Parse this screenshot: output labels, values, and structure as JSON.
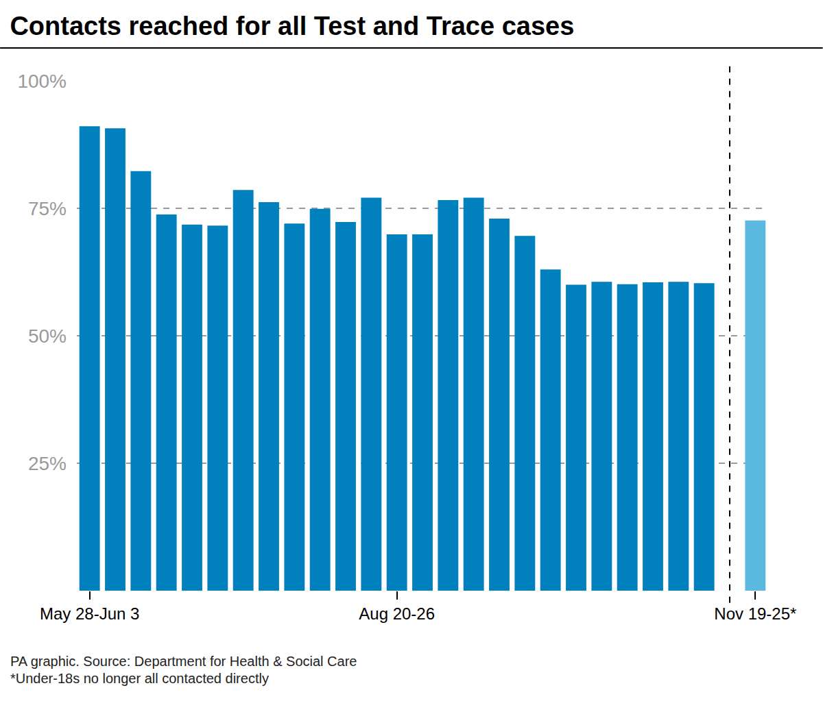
{
  "chart_data": {
    "type": "bar",
    "title": "Contacts reached for all Test and Trace cases",
    "categories": [
      "May 28-Jun 3",
      null,
      null,
      null,
      null,
      null,
      null,
      null,
      null,
      null,
      null,
      null,
      "Aug 20-26",
      null,
      null,
      null,
      null,
      null,
      null,
      null,
      null,
      null,
      null,
      null,
      null,
      null,
      "Nov 19-25*"
    ],
    "values": [
      91.1,
      90.7,
      82.3,
      73.8,
      71.8,
      71.6,
      78.6,
      76.2,
      72.0,
      74.9,
      72.3,
      77.1,
      69.9,
      69.9,
      76.6,
      77.1,
      73.0,
      69.6,
      63.0,
      60.0,
      60.6,
      60.1,
      60.5,
      60.6,
      60.3,
      null,
      72.6
    ],
    "colors": [
      "#0080bc",
      "#0080bc",
      "#0080bc",
      "#0080bc",
      "#0080bc",
      "#0080bc",
      "#0080bc",
      "#0080bc",
      "#0080bc",
      "#0080bc",
      "#0080bc",
      "#0080bc",
      "#0080bc",
      "#0080bc",
      "#0080bc",
      "#0080bc",
      "#0080bc",
      "#0080bc",
      "#0080bc",
      "#0080bc",
      "#0080bc",
      "#0080bc",
      "#0080bc",
      "#0080bc",
      "#0080bc",
      "#0080bc",
      "#5bb8df"
    ],
    "ylim": [
      0,
      100
    ],
    "yticks": [
      {
        "value": 25,
        "label": "25%"
      },
      {
        "value": 50,
        "label": "50%"
      },
      {
        "value": 75,
        "label": "75%"
      },
      {
        "value": 100,
        "label": "100%"
      }
    ],
    "grid": true,
    "annotations": [
      "PA graphic. Source: Department for Health & Social Care",
      "*Under-18s no longer all contacted directly"
    ]
  }
}
